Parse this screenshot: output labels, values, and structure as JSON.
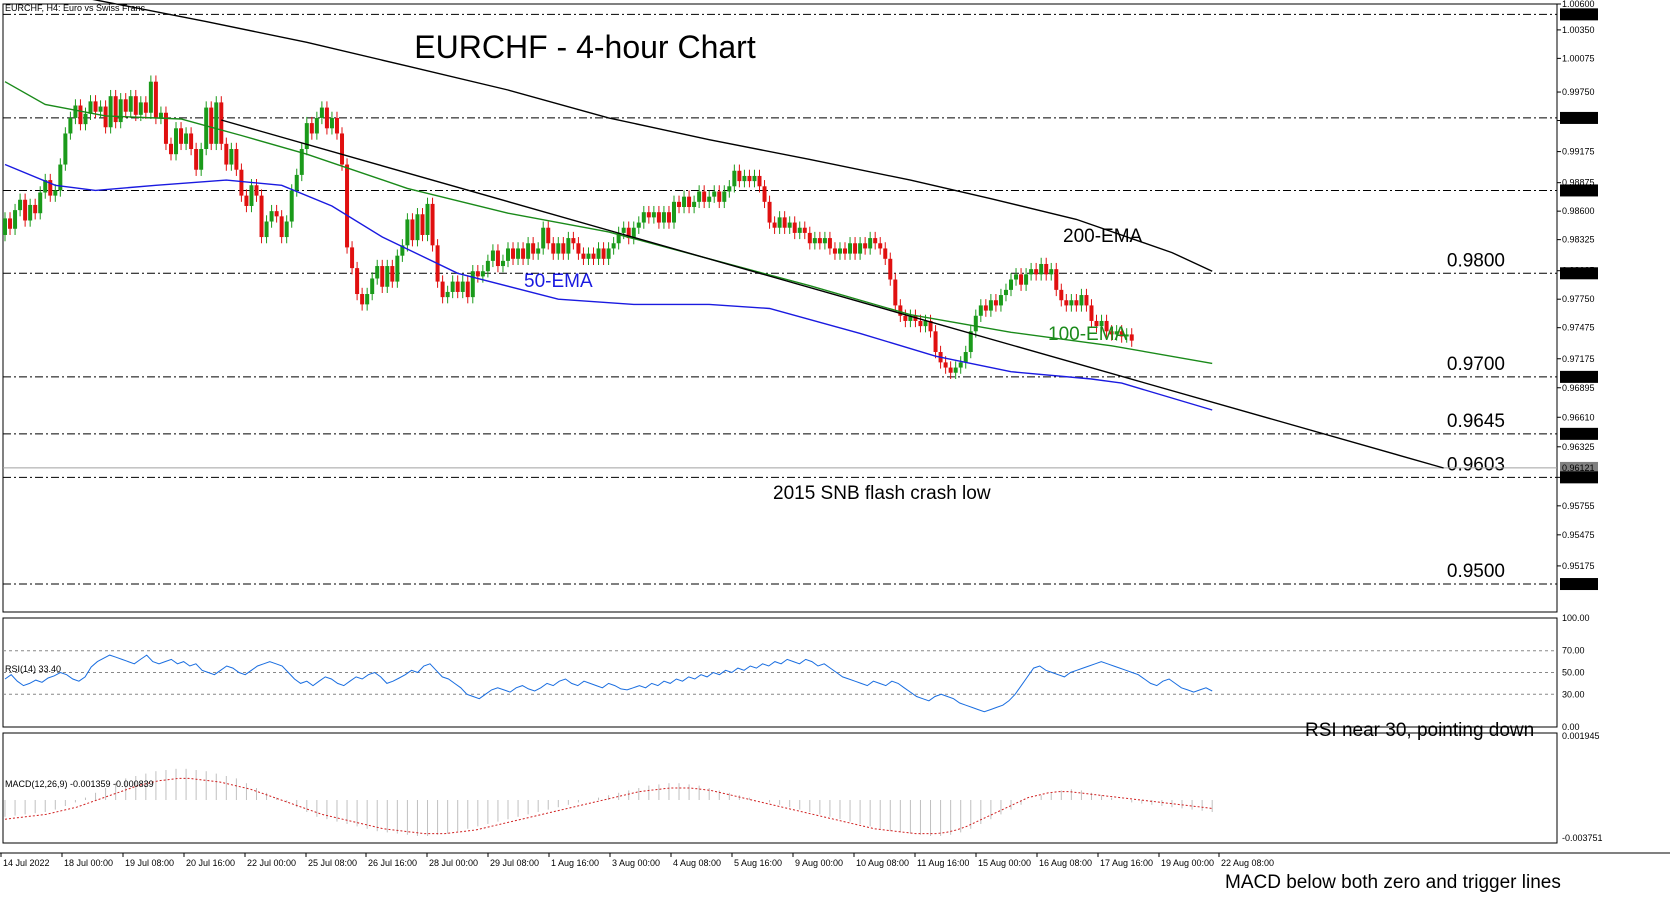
{
  "window": {
    "symbol_header": "EURCHF, H4:  Euro vs Swiss Franc",
    "rsi_header": "RSI(14) 33.40",
    "macd_header": "MACD(12,26,9) -0.001359 -0.000839"
  },
  "chart_data": [
    {
      "type": "candlestick",
      "title": "EURCHF - 4-hour Chart",
      "ylim": [
        0.9473,
        1.006
      ],
      "yticks": [
        "1.00600",
        "1.00350",
        "1.00075",
        "0.99750",
        "0.99475",
        "0.99175",
        "0.98875",
        "0.98600",
        "0.98325",
        "0.98025",
        "0.97750",
        "0.97475",
        "0.97175",
        "0.96895",
        "0.96610",
        "0.96325",
        "0.96030",
        "0.95755",
        "0.95475",
        "0.95175"
      ],
      "price_boxes": [
        "1.00500",
        "0.99500",
        "0.98800",
        "0.98000",
        "0.97000",
        "0.96450",
        "0.96121",
        "0.96030",
        "0.95000"
      ],
      "xticks": [
        "14 Jul 2022",
        "18 Jul 00:00",
        "19 Jul 08:00",
        "20 Jul 16:00",
        "22 Jul 00:00",
        "25 Jul 08:00",
        "26 Jul 16:00",
        "28 Jul 00:00",
        "29 Jul 08:00",
        "1 Aug 16:00",
        "3 Aug 00:00",
        "4 Aug 08:00",
        "5 Aug 16:00",
        "9 Aug 00:00",
        "10 Aug 08:00",
        "11 Aug 16:00",
        "15 Aug 00:00",
        "16 Aug 08:00",
        "17 Aug 16:00",
        "19 Aug 00:00",
        "22 Aug 08:00"
      ],
      "levels": [
        {
          "value": 1.005,
          "label": ""
        },
        {
          "value": 0.995,
          "label": ""
        },
        {
          "value": 0.988,
          "label": ""
        },
        {
          "value": 0.98,
          "label": "0.9800"
        },
        {
          "value": 0.97,
          "label": "0.9700"
        },
        {
          "value": 0.9645,
          "label": "0.9645"
        },
        {
          "value": 0.9603,
          "label": "0.9603"
        },
        {
          "value": 0.95,
          "label": "0.9500"
        }
      ],
      "current_price": 0.96121,
      "series": [
        {
          "name": "200-EMA",
          "color": "#000000",
          "points": [
            [
              0,
              1.0081
            ],
            [
              20,
              1.0062
            ],
            [
              40,
              1.0043
            ],
            [
              60,
              1.0023
            ],
            [
              80,
              1.0
            ],
            [
              100,
              0.9977
            ],
            [
              120,
              0.995
            ],
            [
              140,
              0.9929
            ],
            [
              160,
              0.991
            ],
            [
              180,
              0.989
            ],
            [
              196,
              0.9872
            ],
            [
              213,
              0.9852
            ],
            [
              232,
              0.982
            ],
            [
              240,
              0.9802
            ]
          ]
        },
        {
          "name": "100-EMA",
          "color": "#1a8a1a",
          "points": [
            [
              0,
              0.9985
            ],
            [
              8,
              0.9963
            ],
            [
              20,
              0.9952
            ],
            [
              35,
              0.9949
            ],
            [
              47,
              0.9933
            ],
            [
              60,
              0.9915
            ],
            [
              80,
              0.9882
            ],
            [
              100,
              0.9858
            ],
            [
              120,
              0.984
            ],
            [
              140,
              0.9814
            ],
            [
              160,
              0.9788
            ],
            [
              180,
              0.976
            ],
            [
              200,
              0.9743
            ],
            [
              220,
              0.973
            ],
            [
              240,
              0.9713
            ]
          ]
        },
        {
          "name": "50-EMA",
          "color": "#1a1ae0",
          "points": [
            [
              0,
              0.9905
            ],
            [
              10,
              0.9885
            ],
            [
              18,
              0.988
            ],
            [
              30,
              0.9885
            ],
            [
              44,
              0.989
            ],
            [
              55,
              0.9885
            ],
            [
              65,
              0.9865
            ],
            [
              75,
              0.9835
            ],
            [
              90,
              0.98
            ],
            [
              110,
              0.9775
            ],
            [
              125,
              0.977
            ],
            [
              140,
              0.977
            ],
            [
              152,
              0.9766
            ],
            [
              170,
              0.9742
            ],
            [
              185,
              0.972
            ],
            [
              200,
              0.9705
            ],
            [
              216,
              0.9698
            ],
            [
              222,
              0.9694
            ],
            [
              240,
              0.9668
            ]
          ]
        },
        {
          "name": "trendline",
          "color": "#000000",
          "points": [
            [
              43,
              0.9948
            ],
            [
              286,
              0.9612
            ]
          ]
        }
      ],
      "candles_start": [
        0.9845,
        0.9837
      ],
      "candle_steps": [
        0.0016,
        -0.001,
        0.0018,
        0.001,
        -0.002,
        0.0015,
        -0.0008,
        0.002,
        0.0012,
        -0.0015,
        0.0005,
        0.0025,
        0.003,
        0.0015,
        0.0012,
        -0.0018,
        0.001,
        0.0012,
        -0.001,
        0.0005,
        -0.002,
        0.003,
        -0.0025,
        0.0022,
        -0.0012,
        0.0015,
        -0.0018,
        0.0012,
        -0.001,
        0.003,
        -0.0035,
        0.0005,
        -0.003,
        -0.001,
        0.0025,
        -0.0015,
        0.001,
        -0.0015,
        -0.002,
        0.002,
        0.004,
        -0.0035,
        0.004,
        -0.004,
        -0.002,
        0.0015,
        -0.002,
        -0.0025,
        -0.001,
        0.002,
        -0.001,
        -0.004,
        0.0015,
        0.001,
        -0.0005,
        -0.002,
        0.0015,
        0.003,
        0.0015,
        0.0025,
        0.0025,
        -0.001,
        0.0015,
        0.001,
        -0.002,
        0.001,
        -0.0015,
        -0.003,
        -0.008,
        -0.002,
        -0.0025,
        -0.001,
        0.001,
        0.0015,
        0.0012,
        -0.002,
        0.002,
        -0.0015,
        0.0025,
        0.001,
        0.0025,
        -0.002,
        0.0025,
        -0.002,
        0.003,
        -0.004,
        -0.0035,
        -0.0015,
        0.0005,
        0.001,
        -0.001,
        0.001,
        -0.0015,
        0.0025,
        -0.0005,
        0.0005,
        0.001,
        0.001,
        -0.0015,
        0.0005,
        0.0012,
        -0.001,
        0.001,
        -0.001,
        0.0015,
        -0.001,
        0.0005,
        0.002,
        -0.0015,
        -0.001,
        0.001,
        -0.001,
        0.0015,
        -0.0005,
        -0.001,
        -0.0005,
        0.0005,
        -0.0005,
        0.001,
        -0.001,
        0.001,
        0.0005,
        0.001,
        0.0005,
        -0.001,
        0.001,
        0.0005,
        0.001,
        -0.0005,
        0.0005,
        -0.001,
        0.001,
        -0.001,
        0.002,
        -0.0005,
        0.001,
        -0.001,
        0.0005,
        0.001,
        -0.001,
        0.0005,
        0.0005,
        -0.001,
        0.001,
        0.0005,
        0.0015,
        -0.001,
        0.0005,
        -0.0005,
        0.0005,
        -0.001,
        -0.0015,
        -0.002,
        -0.0005,
        0.001,
        -0.001,
        0.0005,
        -0.001,
        0.0005,
        -0.0005,
        -0.001,
        0.0005,
        -0.0005,
        0.0005,
        -0.001,
        -0.0005,
        0.0005,
        -0.0005,
        0.001,
        -0.001,
        0.001,
        -0.0005,
        0.001,
        -0.0005,
        -0.0005,
        -0.001,
        -0.002,
        -0.0025,
        -0.001,
        -0.0005,
        0.0005,
        -0.0005,
        -0.0005,
        0.0005,
        -0.001,
        -0.002,
        -0.001,
        -0.0005,
        -0.0005,
        0.0005,
        0.0005,
        0.001,
        0.002,
        0.0015,
        0.001,
        -0.0005,
        0.001,
        -0.0005,
        0.001,
        0.0005,
        0.001,
        0.0005,
        -0.001,
        0.001,
        0.0005,
        -0.0005,
        0.001,
        -0.001,
        0.0005,
        -0.002,
        -0.001,
        -0.0005,
        0.0005,
        -0.0005,
        0.001,
        -0.001,
        -0.0015,
        -0.0005,
        0.0005,
        -0.001,
        -0.0003,
        0.0003,
        -0.0005,
        0.0002,
        -0.0006
      ],
      "annotations": [
        {
          "text": "200-EMA",
          "color": "#000000"
        },
        {
          "text": "100-EMA",
          "color": "#1a8a1a"
        },
        {
          "text": "50-EMA",
          "color": "#1a1ae0"
        },
        {
          "text": "2015 SNB flash crash low",
          "color": "#000000"
        }
      ]
    },
    {
      "type": "line",
      "name": "RSI(14)",
      "ylim": [
        0,
        100
      ],
      "yticks": [
        "100.00",
        "70.00",
        "50.00",
        "30.00",
        "0.00"
      ],
      "levels": [
        70,
        50,
        30
      ],
      "series": [
        {
          "name": "RSI(14)",
          "color": "#1a6ee0",
          "values": [
            44,
            48,
            42,
            38,
            40,
            43,
            41,
            45,
            47,
            50,
            48,
            44,
            42,
            46,
            55,
            60,
            63,
            66,
            64,
            62,
            60,
            58,
            62,
            66,
            60,
            58,
            60,
            62,
            58,
            60,
            56,
            58,
            52,
            50,
            48,
            52,
            56,
            54,
            50,
            48,
            52,
            56,
            58,
            60,
            58,
            56,
            50,
            44,
            40,
            42,
            38,
            42,
            46,
            44,
            40,
            38,
            42,
            46,
            44,
            48,
            50,
            46,
            40,
            42,
            45,
            48,
            52,
            50,
            56,
            58,
            52,
            46,
            44,
            40,
            36,
            30,
            28,
            26,
            30,
            34,
            36,
            34,
            32,
            36,
            38,
            35,
            33,
            36,
            40,
            38,
            42,
            44,
            40,
            38,
            42,
            40,
            38,
            36,
            40,
            38,
            35,
            34,
            36,
            38,
            36,
            40,
            38,
            42,
            40,
            44,
            42,
            46,
            44,
            48,
            46,
            50,
            48,
            52,
            50,
            54,
            52,
            56,
            54,
            58,
            56,
            60,
            58,
            62,
            60,
            58,
            62,
            60,
            56,
            58,
            54,
            50,
            46,
            44,
            42,
            40,
            38,
            42,
            40,
            38,
            42,
            40,
            36,
            32,
            28,
            26,
            24,
            28,
            30,
            28,
            26,
            22,
            20,
            18,
            16,
            14,
            16,
            18,
            20,
            24,
            30,
            38,
            46,
            54,
            56,
            52,
            50,
            48,
            46,
            50,
            52,
            54,
            56,
            58,
            60,
            58,
            56,
            54,
            52,
            50,
            48,
            44,
            40,
            38,
            42,
            44,
            40,
            36,
            34,
            32,
            34,
            36,
            33
          ]
        }
      ],
      "annotation": "RSI near 30, pointing down"
    },
    {
      "type": "bar+line",
      "name": "MACD(12,26,9)",
      "ylim": [
        -0.003751,
        0.001945
      ],
      "yticks": [
        "0.001945",
        "-0.003751"
      ],
      "series": [
        {
          "name": "MACD",
          "color": "#c0c0c0",
          "values_scaled": [
            -14,
            -13,
            -12,
            -11,
            -10,
            -8,
            -5,
            -2,
            2,
            6,
            10,
            14,
            18,
            20,
            22,
            24,
            25,
            26,
            26,
            25,
            24,
            22,
            20,
            18,
            14,
            10,
            6,
            2,
            -2,
            -6,
            -10,
            -14,
            -16,
            -18,
            -20,
            -22,
            -24,
            -26,
            -27,
            -28,
            -29,
            -30,
            -30,
            -29,
            -28,
            -26,
            -24,
            -22,
            -20,
            -18,
            -16,
            -14,
            -12,
            -10,
            -8,
            -6,
            -4,
            -2,
            0,
            2,
            4,
            6,
            8,
            10,
            12,
            13,
            14,
            14,
            13,
            12,
            10,
            8,
            6,
            4,
            2,
            0,
            -2,
            -4,
            -6,
            -8,
            -10,
            -12,
            -14,
            -16,
            -18,
            -20,
            -22,
            -24,
            -26,
            -27,
            -28,
            -29,
            -30,
            -30,
            -29,
            -27,
            -24,
            -20,
            -16,
            -12,
            -8,
            -4,
            0,
            4,
            6,
            8,
            9,
            8,
            6,
            4,
            2,
            0,
            -2,
            -3,
            -4,
            -5,
            -6,
            -7,
            -8,
            -9,
            -10
          ]
        },
        {
          "name": "Signal",
          "color": "#d02020",
          "values_scaled": [
            -16,
            -15,
            -14,
            -13,
            -12,
            -10,
            -8,
            -6,
            -3,
            0,
            3,
            6,
            9,
            12,
            14,
            16,
            17,
            18,
            18,
            17,
            16,
            15,
            13,
            11,
            9,
            6,
            3,
            0,
            -3,
            -6,
            -9,
            -12,
            -14,
            -16,
            -18,
            -20,
            -22,
            -24,
            -25,
            -26,
            -27,
            -28,
            -28,
            -28,
            -27,
            -26,
            -25,
            -23,
            -21,
            -19,
            -17,
            -15,
            -13,
            -11,
            -9,
            -7,
            -5,
            -3,
            -1,
            1,
            3,
            5,
            7,
            8,
            9,
            10,
            10,
            10,
            9,
            8,
            6,
            4,
            2,
            0,
            -2,
            -4,
            -6,
            -8,
            -10,
            -12,
            -14,
            -16,
            -18,
            -20,
            -22,
            -24,
            -25,
            -26,
            -27,
            -28,
            -28,
            -28,
            -27,
            -25,
            -22,
            -18,
            -14,
            -10,
            -6,
            -2,
            2,
            4,
            6,
            7,
            7,
            6,
            5,
            4,
            3,
            2,
            1,
            0,
            -1,
            -2,
            -3,
            -4,
            -5,
            -6,
            -7
          ]
        }
      ],
      "annotation": "MACD below both zero and trigger lines"
    }
  ]
}
